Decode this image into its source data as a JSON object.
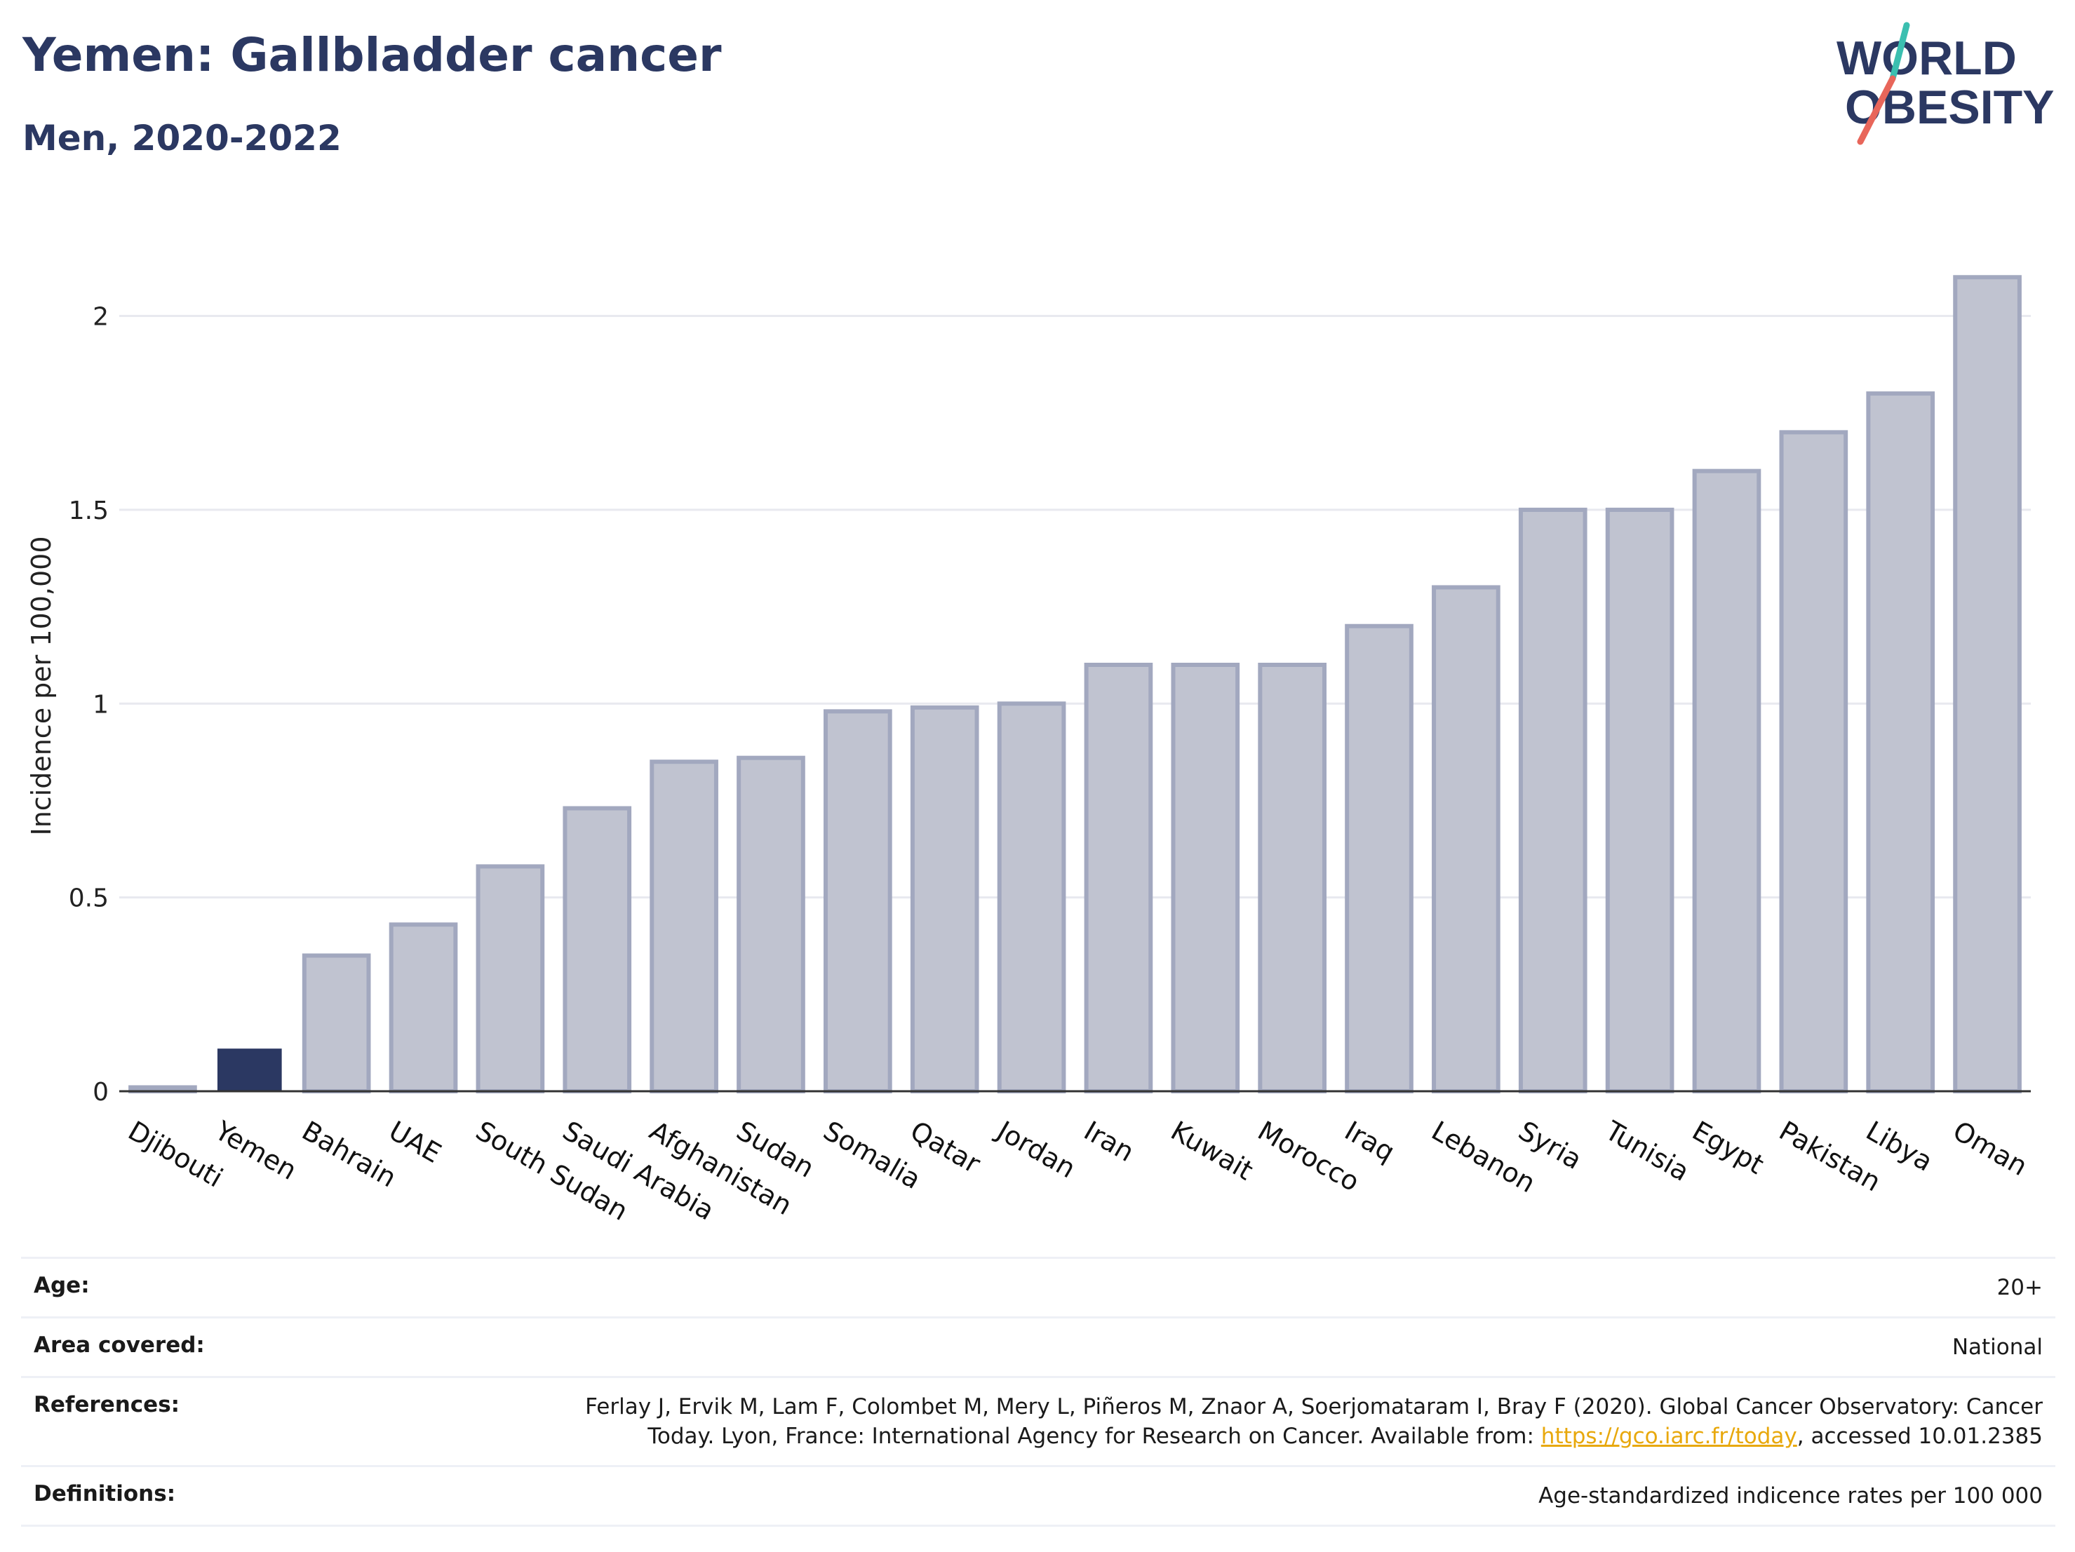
{
  "header": {
    "title": "Yemen: Gallbladder cancer",
    "subtitle": "Men, 2020-2022"
  },
  "logo": {
    "line1": "WORLD",
    "line2": "OBESITY",
    "accent_teal": "#3bbfb0",
    "accent_coral": "#e8665a",
    "text_color": "#2b3862"
  },
  "chart_data": {
    "type": "bar",
    "categories": [
      "Djibouti",
      "Yemen",
      "Bahrain",
      "UAE",
      "South Sudan",
      "Saudi Arabia",
      "Afghanistan",
      "Sudan",
      "Somalia",
      "Qatar",
      "Jordan",
      "Iran",
      "Kuwait",
      "Morocco",
      "Iraq",
      "Lebanon",
      "Syria",
      "Tunisia",
      "Egypt",
      "Pakistan",
      "Libya",
      "Oman"
    ],
    "values": [
      0.01,
      0.11,
      0.35,
      0.43,
      0.58,
      0.73,
      0.85,
      0.86,
      0.98,
      0.99,
      1.0,
      1.1,
      1.1,
      1.1,
      1.2,
      1.3,
      1.5,
      1.5,
      1.6,
      1.7,
      1.8,
      2.1
    ],
    "highlight": "Yemen",
    "ylabel": "Incidence per 100,000",
    "yticks": [
      "0",
      "0.5",
      "1",
      "1.5",
      "2"
    ],
    "ylim": [
      0,
      2.2
    ],
    "grid": true,
    "colors": {
      "bar": "#c0c3d0",
      "bar_edge": "#a2a8bf",
      "highlight": "#2b3862",
      "grid": "#e8e9ef",
      "axis": "#333333"
    }
  },
  "info": {
    "age_label": "Age:",
    "age_value": "20+",
    "area_label": "Area covered:",
    "area_value": "National",
    "references_label": "References:",
    "references_text_1": "Ferlay J, Ervik M, Lam F, Colombet M, Mery L, Piñeros M, Znaor A, Soerjomataram I, Bray F (2020). Global Cancer Observatory: Cancer",
    "references_text_2": "Today. Lyon, France: International Agency for Research on Cancer. Available from: ",
    "references_link": "https://gco.iarc.fr/today",
    "references_text_3": ", accessed 10.01.2385",
    "definitions_label": "Definitions:",
    "definitions_value": "Age-standardized indicence rates per 100 000"
  }
}
